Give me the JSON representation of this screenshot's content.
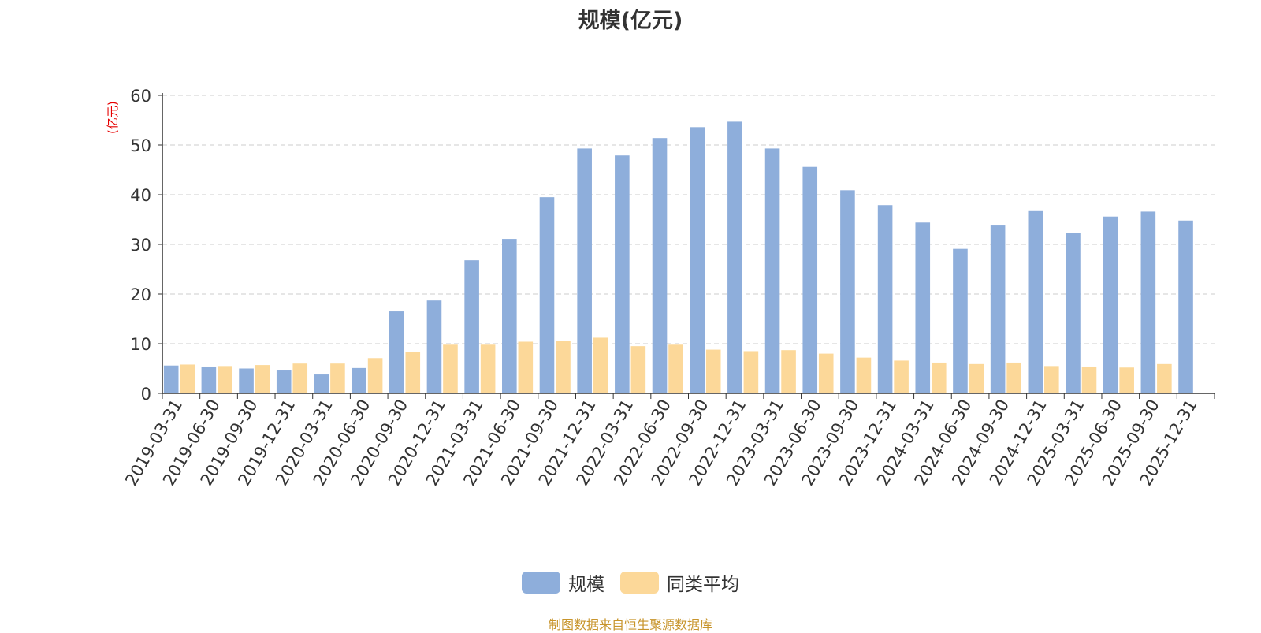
{
  "chart_data": {
    "type": "bar",
    "title": "规模(亿元)",
    "ylabel": "(亿元)",
    "xlabel": "",
    "ylim": [
      0,
      60
    ],
    "yticks": [
      0,
      10,
      20,
      30,
      40,
      50,
      60
    ],
    "grid": "horizontal dashed",
    "legend_position": "bottom-center",
    "categories": [
      "2019-03-31",
      "2019-06-30",
      "2019-09-30",
      "2019-12-31",
      "2020-03-31",
      "2020-06-30",
      "2020-09-30",
      "2020-12-31",
      "2021-03-31",
      "2021-06-30",
      "2021-09-30",
      "2021-12-31",
      "2022-03-31",
      "2022-06-30",
      "2022-09-30",
      "2022-12-31",
      "2023-03-31",
      "2023-06-30",
      "2023-09-30",
      "2023-12-31",
      "2024-03-31",
      "2024-06-30",
      "2024-09-30",
      "2024-12-31",
      "2025-03-31",
      "2025-06-30",
      "2025-09-30",
      "2025-12-31"
    ],
    "series": [
      {
        "name": "规模",
        "color": "#8eaedb",
        "values": [
          5.6,
          5.4,
          5.0,
          4.6,
          3.8,
          5.1,
          16.5,
          18.7,
          26.8,
          31.1,
          39.5,
          49.3,
          47.9,
          51.4,
          53.6,
          54.7,
          49.3,
          45.6,
          40.9,
          37.9,
          34.4,
          29.1,
          33.8,
          36.7,
          32.3,
          35.6,
          36.6,
          34.8
        ]
      },
      {
        "name": "同类平均",
        "color": "#fcd899",
        "values": [
          5.8,
          5.5,
          5.7,
          6.0,
          6.0,
          7.1,
          8.4,
          9.8,
          9.8,
          10.4,
          10.5,
          11.2,
          9.5,
          9.8,
          8.8,
          8.5,
          8.7,
          8.0,
          7.2,
          6.6,
          6.2,
          5.9,
          6.2,
          5.5,
          5.4,
          5.2,
          5.9,
          null
        ]
      }
    ]
  },
  "source_note": "制图数据来自恒生聚源数据库"
}
